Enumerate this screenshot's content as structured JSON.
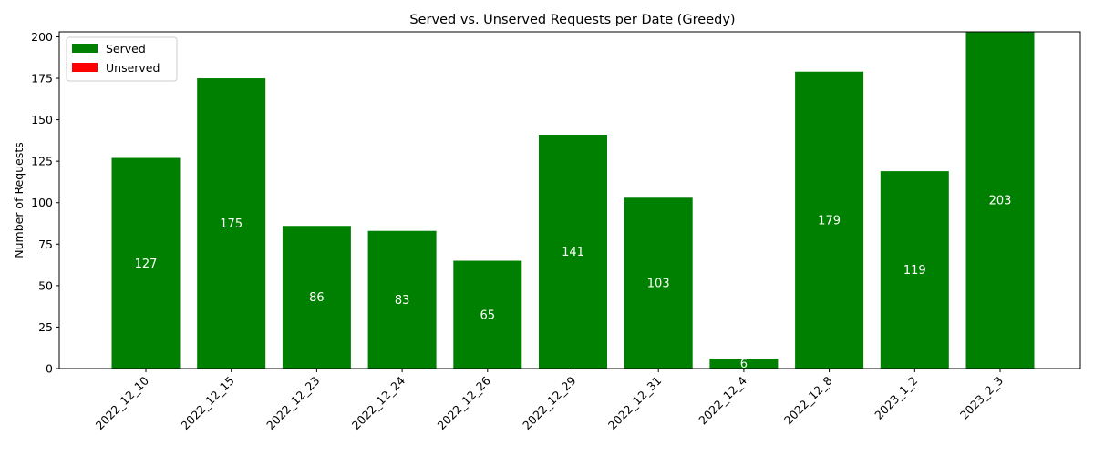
{
  "chart_data": {
    "type": "bar",
    "title": "Served vs. Unserved Requests per Date (Greedy)",
    "xlabel": "",
    "ylabel": "Number of Requests",
    "categories": [
      "2022_12_10",
      "2022_12_15",
      "2022_12_23",
      "2022_12_24",
      "2022_12_26",
      "2022_12_29",
      "2022_12_31",
      "2022_12_4",
      "2022_12_8",
      "2023_1_2",
      "2023_2_3"
    ],
    "series": [
      {
        "name": "Served",
        "color": "#008000",
        "values": [
          127,
          175,
          86,
          83,
          65,
          141,
          103,
          6,
          179,
          119,
          203
        ]
      },
      {
        "name": "Unserved",
        "color": "#ff0000",
        "values": [
          0,
          0,
          0,
          0,
          0,
          0,
          0,
          0,
          0,
          0,
          0
        ]
      }
    ],
    "data_labels": [
      "127",
      "175",
      "86",
      "83",
      "65",
      "141",
      "103",
      "6",
      "179",
      "119",
      "203"
    ],
    "yticks": [
      0,
      25,
      50,
      75,
      100,
      125,
      150,
      175,
      200
    ],
    "ylim": [
      0,
      203
    ],
    "grid": false,
    "legend_position": "top-left"
  }
}
